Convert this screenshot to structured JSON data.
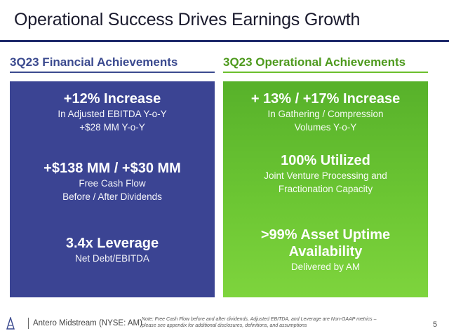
{
  "title": "Operational Success Drives Earnings Growth",
  "financial": {
    "heading": "3Q23 Financial Achievements",
    "items": [
      {
        "headline": "+12% Increase",
        "lines": [
          "In Adjusted EBITDA Y-o-Y",
          "+$28 MM Y-o-Y"
        ]
      },
      {
        "headline": "+$138 MM / +$30 MM",
        "lines": [
          "Free Cash Flow",
          "Before / After Dividends"
        ]
      },
      {
        "headline": "3.4x Leverage",
        "lines": [
          "Net Debt/EBITDA"
        ]
      }
    ]
  },
  "operational": {
    "heading": "3Q23 Operational Achievements",
    "items": [
      {
        "headline": "+ 13% / +17% Increase",
        "lines": [
          "In Gathering / Compression",
          "Volumes Y-o-Y"
        ]
      },
      {
        "headline": "100% Utilized",
        "lines": [
          "Joint Venture Processing and",
          "Fractionation Capacity"
        ]
      },
      {
        "headline": ">99% Asset Uptime",
        "headline2": "Availability",
        "lines": [
          "Delivered by AM"
        ]
      }
    ]
  },
  "footer": {
    "company": "Antero Midstream (NYSE: AM)",
    "note": "Note: Free Cash Flow before and after dividends, Adjusted EBITDA, and Leverage are Non-GAAP metrics – please see appendix for additional disclosures, definitions, and assumptions",
    "page": "5"
  }
}
